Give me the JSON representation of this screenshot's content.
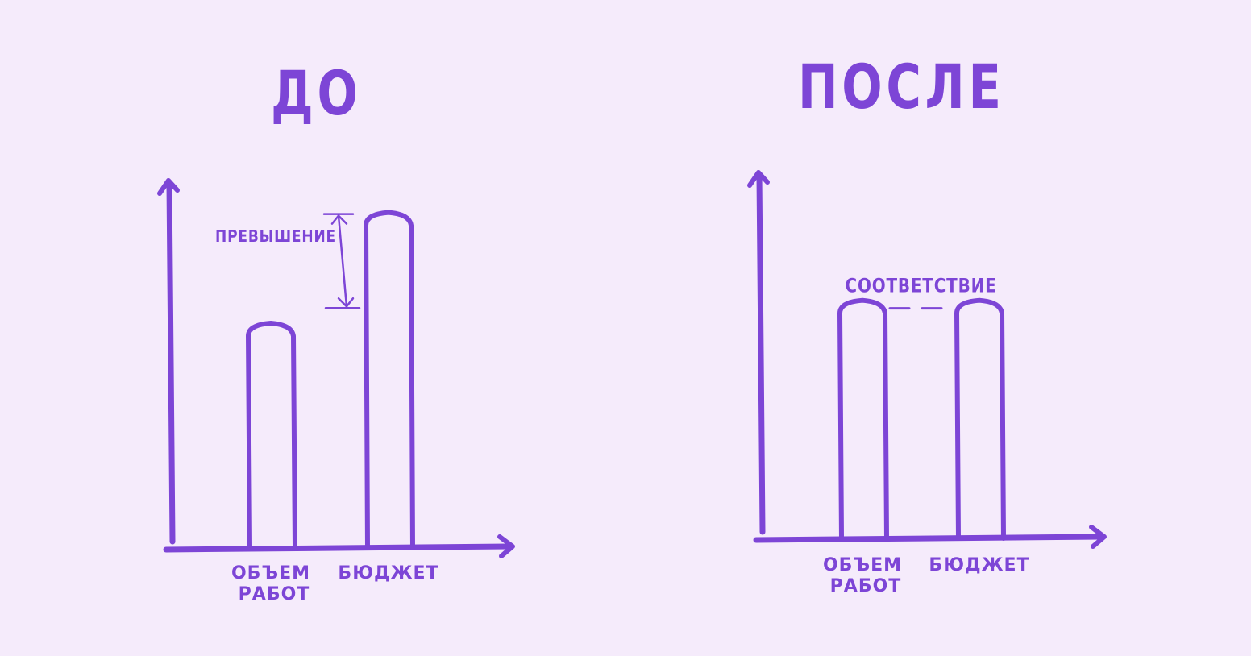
{
  "theme": {
    "background": "#f5ebfb",
    "ink": "#7d45d6"
  },
  "chart_data": [
    {
      "type": "bar",
      "title": "ДО",
      "categories": [
        "ОБЪЕМ РАБОТ",
        "БЮДЖЕТ"
      ],
      "values": [
        67,
        100
      ],
      "ylim": [
        0,
        110
      ],
      "grid": false,
      "annotation": {
        "text": "ПРЕВЫШЕНИЕ",
        "type": "dimension-arrow",
        "from_value": 72,
        "to_value": 100
      }
    },
    {
      "type": "bar",
      "title": "ПОСЛЕ",
      "categories": [
        "ОБЪЕМ РАБОТ",
        "БЮДЖЕТ"
      ],
      "values": [
        68,
        68
      ],
      "ylim": [
        0,
        105
      ],
      "grid": false,
      "annotation": {
        "text": "СООТВЕТСТВИЕ",
        "type": "dashed-link"
      }
    }
  ]
}
